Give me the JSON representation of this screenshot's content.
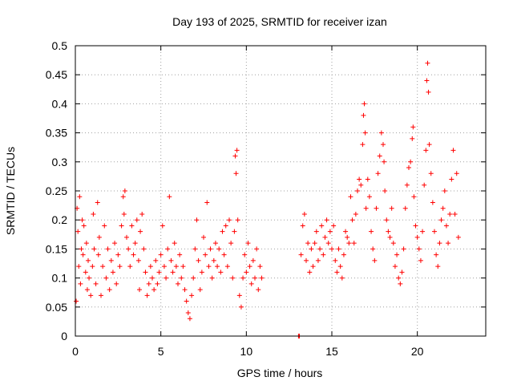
{
  "chart_data": {
    "type": "scatter",
    "title": "Day 193 of 2025, SRMTID for receiver izan",
    "xlabel": "GPS time / hours",
    "ylabel": "SRMTID / TECUs",
    "xlim": [
      0,
      24
    ],
    "ylim": [
      0,
      0.5
    ],
    "grid": true,
    "x_ticks": [
      0,
      5,
      10,
      15,
      20
    ],
    "y_ticks": [
      0,
      0.05,
      0.1,
      0.15,
      0.2,
      0.25,
      0.3,
      0.35,
      0.4,
      0.45,
      0.5
    ],
    "marker": "+",
    "colors": {
      "points": "#ff0000",
      "grid": "#a0a0a0",
      "frame": "#000000"
    },
    "points": [
      [
        0.05,
        0.06
      ],
      [
        0.1,
        0.22
      ],
      [
        0.15,
        0.18
      ],
      [
        0.2,
        0.12
      ],
      [
        0.25,
        0.24
      ],
      [
        0.3,
        0.09
      ],
      [
        0.35,
        0.15
      ],
      [
        0.4,
        0.2
      ],
      [
        0.45,
        0.14
      ],
      [
        0.5,
        0.19
      ],
      [
        0.6,
        0.11
      ],
      [
        0.65,
        0.16
      ],
      [
        0.7,
        0.08
      ],
      [
        0.75,
        0.13
      ],
      [
        0.8,
        0.1
      ],
      [
        0.9,
        0.07
      ],
      [
        1.0,
        0.12
      ],
      [
        1.05,
        0.21
      ],
      [
        1.1,
        0.15
      ],
      [
        1.2,
        0.09
      ],
      [
        1.3,
        0.23
      ],
      [
        1.35,
        0.14
      ],
      [
        1.4,
        0.17
      ],
      [
        1.5,
        0.07
      ],
      [
        1.6,
        0.12
      ],
      [
        1.7,
        0.19
      ],
      [
        1.8,
        0.1
      ],
      [
        1.9,
        0.15
      ],
      [
        2.0,
        0.08
      ],
      [
        2.1,
        0.13
      ],
      [
        2.2,
        0.11
      ],
      [
        2.3,
        0.16
      ],
      [
        2.4,
        0.09
      ],
      [
        2.5,
        0.14
      ],
      [
        2.6,
        0.12
      ],
      [
        2.7,
        0.19
      ],
      [
        2.8,
        0.24
      ],
      [
        2.85,
        0.21
      ],
      [
        2.9,
        0.25
      ],
      [
        3.0,
        0.17
      ],
      [
        3.1,
        0.15
      ],
      [
        3.2,
        0.12
      ],
      [
        3.3,
        0.19
      ],
      [
        3.4,
        0.14
      ],
      [
        3.5,
        0.16
      ],
      [
        3.6,
        0.2
      ],
      [
        3.7,
        0.13
      ],
      [
        3.75,
        0.08
      ],
      [
        3.8,
        0.18
      ],
      [
        3.9,
        0.21
      ],
      [
        4.0,
        0.15
      ],
      [
        4.1,
        0.11
      ],
      [
        4.2,
        0.07
      ],
      [
        4.3,
        0.09
      ],
      [
        4.4,
        0.12
      ],
      [
        4.5,
        0.1
      ],
      [
        4.6,
        0.08
      ],
      [
        4.7,
        0.13
      ],
      [
        4.8,
        0.09
      ],
      [
        4.9,
        0.11
      ],
      [
        5.0,
        0.14
      ],
      [
        5.1,
        0.19
      ],
      [
        5.2,
        0.12
      ],
      [
        5.3,
        0.1
      ],
      [
        5.4,
        0.15
      ],
      [
        5.5,
        0.24
      ],
      [
        5.6,
        0.13
      ],
      [
        5.7,
        0.11
      ],
      [
        5.8,
        0.16
      ],
      [
        5.9,
        0.12
      ],
      [
        6.0,
        0.09
      ],
      [
        6.1,
        0.14
      ],
      [
        6.2,
        0.1
      ],
      [
        6.3,
        0.12
      ],
      [
        6.4,
        0.08
      ],
      [
        6.5,
        0.06
      ],
      [
        6.6,
        0.04
      ],
      [
        6.7,
        0.03
      ],
      [
        6.8,
        0.07
      ],
      [
        6.9,
        0.1
      ],
      [
        7.0,
        0.15
      ],
      [
        7.1,
        0.2
      ],
      [
        7.2,
        0.13
      ],
      [
        7.3,
        0.08
      ],
      [
        7.4,
        0.11
      ],
      [
        7.5,
        0.17
      ],
      [
        7.6,
        0.14
      ],
      [
        7.7,
        0.23
      ],
      [
        7.8,
        0.12
      ],
      [
        7.9,
        0.15
      ],
      [
        8.0,
        0.1
      ],
      [
        8.1,
        0.13
      ],
      [
        8.2,
        0.16
      ],
      [
        8.3,
        0.12
      ],
      [
        8.4,
        0.15
      ],
      [
        8.5,
        0.11
      ],
      [
        8.6,
        0.18
      ],
      [
        8.7,
        0.14
      ],
      [
        8.8,
        0.19
      ],
      [
        8.9,
        0.12
      ],
      [
        9.0,
        0.2
      ],
      [
        9.1,
        0.16
      ],
      [
        9.2,
        0.1
      ],
      [
        9.3,
        0.18
      ],
      [
        9.35,
        0.31
      ],
      [
        9.4,
        0.28
      ],
      [
        9.45,
        0.32
      ],
      [
        9.5,
        0.2
      ],
      [
        9.6,
        0.07
      ],
      [
        9.7,
        0.05
      ],
      [
        9.8,
        0.1
      ],
      [
        9.9,
        0.14
      ],
      [
        10.0,
        0.11
      ],
      [
        10.1,
        0.16
      ],
      [
        10.2,
        0.12
      ],
      [
        10.3,
        0.09
      ],
      [
        10.4,
        0.13
      ],
      [
        10.5,
        0.1
      ],
      [
        10.6,
        0.15
      ],
      [
        10.7,
        0.08
      ],
      [
        10.8,
        0.12
      ],
      [
        10.9,
        0.1
      ],
      [
        13.05,
        0.0
      ],
      [
        13.1,
        0.0
      ],
      [
        13.2,
        0.14
      ],
      [
        13.3,
        0.19
      ],
      [
        13.4,
        0.21
      ],
      [
        13.5,
        0.13
      ],
      [
        13.6,
        0.16
      ],
      [
        13.7,
        0.11
      ],
      [
        13.8,
        0.15
      ],
      [
        13.9,
        0.12
      ],
      [
        14.0,
        0.16
      ],
      [
        14.1,
        0.18
      ],
      [
        14.2,
        0.13
      ],
      [
        14.3,
        0.15
      ],
      [
        14.4,
        0.19
      ],
      [
        14.5,
        0.14
      ],
      [
        14.6,
        0.17
      ],
      [
        14.7,
        0.2
      ],
      [
        14.8,
        0.16
      ],
      [
        14.9,
        0.18
      ],
      [
        15.0,
        0.15
      ],
      [
        15.1,
        0.19
      ],
      [
        15.2,
        0.13
      ],
      [
        15.3,
        0.11
      ],
      [
        15.4,
        0.15
      ],
      [
        15.5,
        0.12
      ],
      [
        15.6,
        0.1
      ],
      [
        15.7,
        0.14
      ],
      [
        15.8,
        0.18
      ],
      [
        15.9,
        0.17
      ],
      [
        16.0,
        0.16
      ],
      [
        16.1,
        0.24
      ],
      [
        16.2,
        0.2
      ],
      [
        16.3,
        0.16
      ],
      [
        16.4,
        0.21
      ],
      [
        16.5,
        0.25
      ],
      [
        16.6,
        0.27
      ],
      [
        16.7,
        0.26
      ],
      [
        16.8,
        0.33
      ],
      [
        16.85,
        0.38
      ],
      [
        16.9,
        0.4
      ],
      [
        16.95,
        0.35
      ],
      [
        17.0,
        0.22
      ],
      [
        17.1,
        0.27
      ],
      [
        17.2,
        0.24
      ],
      [
        17.3,
        0.18
      ],
      [
        17.4,
        0.15
      ],
      [
        17.5,
        0.13
      ],
      [
        17.6,
        0.22
      ],
      [
        17.7,
        0.28
      ],
      [
        17.8,
        0.31
      ],
      [
        17.9,
        0.35
      ],
      [
        18.0,
        0.33
      ],
      [
        18.05,
        0.3
      ],
      [
        18.1,
        0.25
      ],
      [
        18.2,
        0.2
      ],
      [
        18.3,
        0.18
      ],
      [
        18.4,
        0.17
      ],
      [
        18.5,
        0.22
      ],
      [
        18.6,
        0.16
      ],
      [
        18.7,
        0.12
      ],
      [
        18.8,
        0.14
      ],
      [
        18.9,
        0.1
      ],
      [
        19.0,
        0.09
      ],
      [
        19.1,
        0.11
      ],
      [
        19.2,
        0.15
      ],
      [
        19.3,
        0.22
      ],
      [
        19.4,
        0.26
      ],
      [
        19.5,
        0.29
      ],
      [
        19.6,
        0.3
      ],
      [
        19.7,
        0.34
      ],
      [
        19.75,
        0.36
      ],
      [
        19.8,
        0.24
      ],
      [
        19.9,
        0.19
      ],
      [
        20.0,
        0.17
      ],
      [
        20.1,
        0.15
      ],
      [
        20.2,
        0.13
      ],
      [
        20.3,
        0.18
      ],
      [
        20.4,
        0.26
      ],
      [
        20.5,
        0.32
      ],
      [
        20.55,
        0.44
      ],
      [
        20.6,
        0.47
      ],
      [
        20.65,
        0.42
      ],
      [
        20.7,
        0.33
      ],
      [
        20.8,
        0.28
      ],
      [
        20.9,
        0.23
      ],
      [
        21.0,
        0.18
      ],
      [
        21.1,
        0.14
      ],
      [
        21.2,
        0.12
      ],
      [
        21.3,
        0.16
      ],
      [
        21.4,
        0.2
      ],
      [
        21.5,
        0.22
      ],
      [
        21.6,
        0.25
      ],
      [
        21.7,
        0.19
      ],
      [
        21.8,
        0.16
      ],
      [
        21.9,
        0.21
      ],
      [
        22.0,
        0.27
      ],
      [
        22.1,
        0.32
      ],
      [
        22.2,
        0.21
      ],
      [
        22.3,
        0.28
      ],
      [
        22.4,
        0.17
      ]
    ]
  }
}
